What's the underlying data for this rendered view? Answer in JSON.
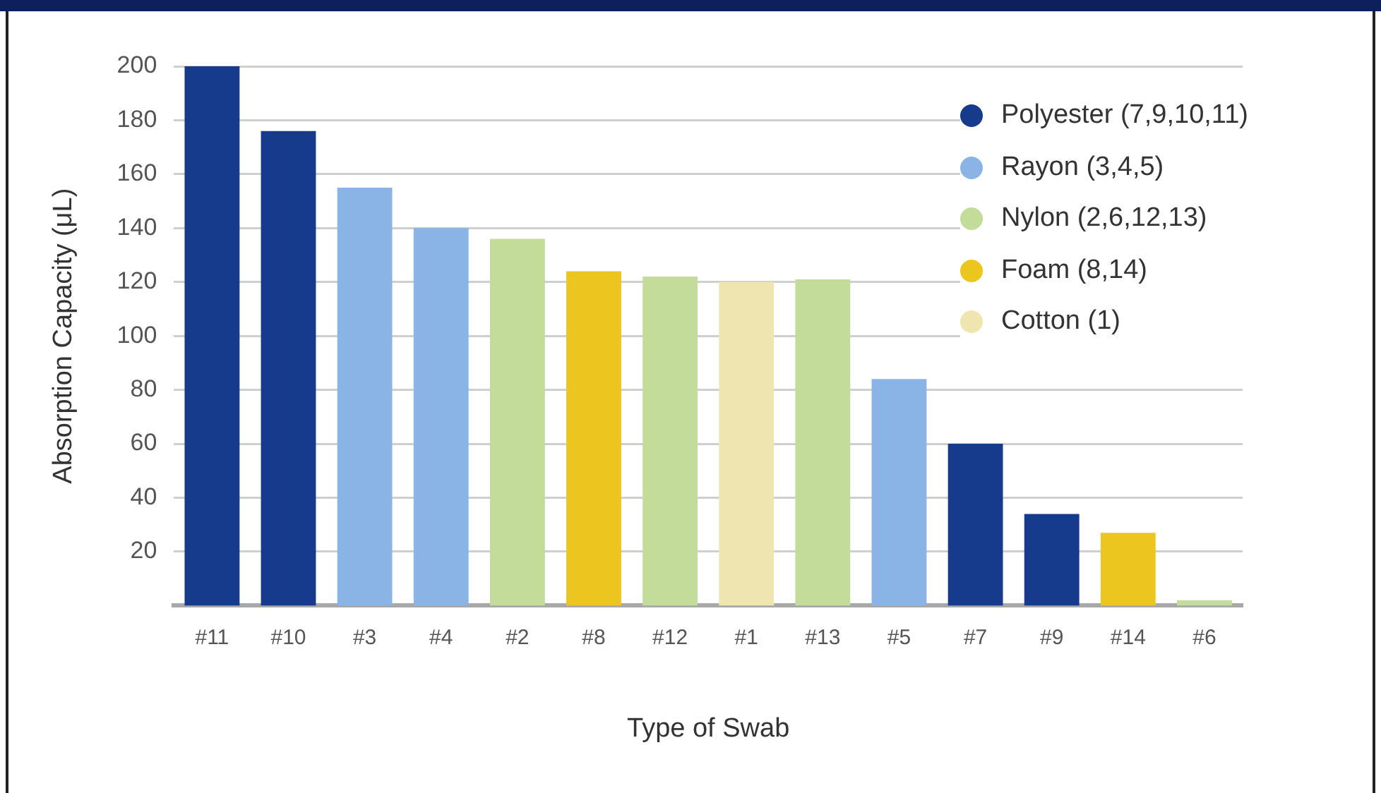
{
  "chart_data": {
    "type": "bar",
    "xlabel": "Type of Swab",
    "ylabel": "Absorption Capacity (μL)",
    "categories": [
      "#11",
      "#10",
      "#3",
      "#4",
      "#2",
      "#8",
      "#12",
      "#1",
      "#13",
      "#5",
      "#7",
      "#9",
      "#14",
      "#6"
    ],
    "series": [
      {
        "name": "Polyester (7,9,10,11)",
        "color": "#163a8c",
        "values": [
          200,
          176,
          null,
          null,
          null,
          null,
          null,
          null,
          null,
          null,
          60,
          34,
          null,
          null
        ]
      },
      {
        "name": "Rayon (3,4,5)",
        "color": "#8bb4e6",
        "values": [
          null,
          null,
          155,
          140,
          null,
          null,
          null,
          null,
          null,
          84,
          null,
          null,
          null,
          null
        ]
      },
      {
        "name": "Nylon (2,6,12,13)",
        "color": "#c3dc9a",
        "values": [
          null,
          null,
          null,
          null,
          136,
          null,
          122,
          null,
          121,
          null,
          null,
          null,
          null,
          2
        ]
      },
      {
        "name": "Foam (8,14)",
        "color": "#ecc51e",
        "values": [
          null,
          null,
          null,
          null,
          null,
          124,
          null,
          null,
          null,
          null,
          null,
          null,
          27,
          null
        ]
      },
      {
        "name": "Cotton (1)",
        "color": "#efe5b0",
        "values": [
          null,
          null,
          null,
          null,
          null,
          null,
          null,
          120,
          null,
          null,
          null,
          null,
          null,
          null
        ]
      }
    ],
    "ylim": [
      0,
      200
    ],
    "yticks": [
      20,
      40,
      60,
      80,
      100,
      120,
      140,
      160,
      180,
      200
    ],
    "grid": "y",
    "legend": "top right"
  }
}
